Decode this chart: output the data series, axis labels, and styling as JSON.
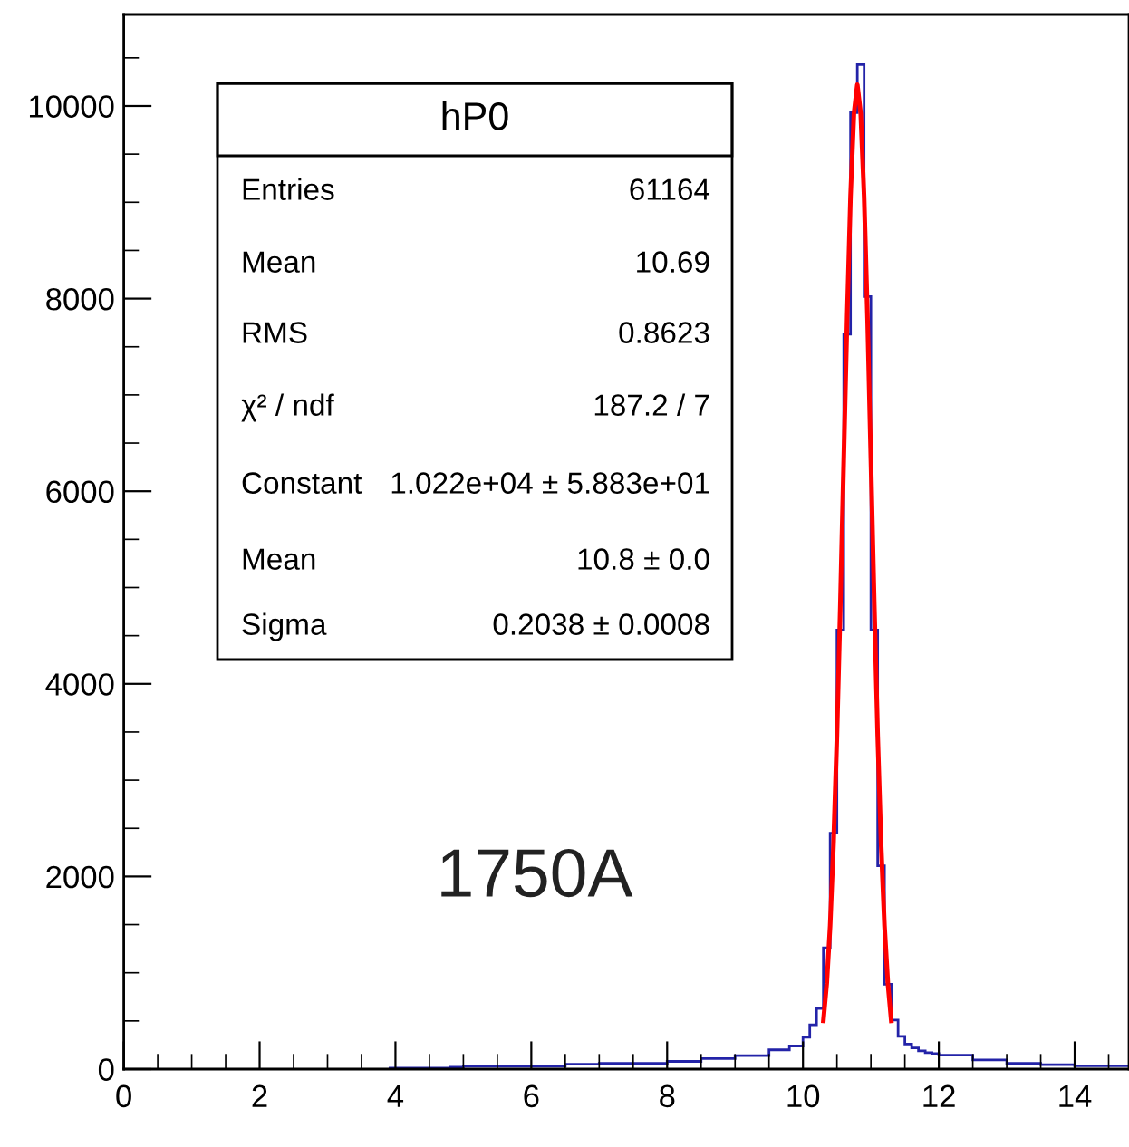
{
  "chart_data": {
    "type": "histogram",
    "xlim": [
      0,
      14.8
    ],
    "ylim": [
      0,
      10950
    ],
    "xticks": [
      0,
      2,
      4,
      6,
      8,
      10,
      12,
      14
    ],
    "yticks": [
      0,
      2000,
      4000,
      6000,
      8000,
      10000
    ],
    "series": [
      {
        "color": "#2323a8",
        "bins": [
          3.9,
          4.0,
          4.1,
          4.2,
          4.3,
          4.4,
          4.5,
          4.6,
          4.7,
          4.8,
          4.9,
          5.0,
          5.1,
          5.2,
          5.3,
          5.4,
          5.5,
          5.6,
          5.7,
          5.8,
          5.9,
          6.0,
          6.1,
          6.2,
          6.3,
          6.4,
          6.5,
          6.6,
          6.7,
          6.8,
          6.9,
          7.0,
          7.1,
          7.2,
          7.3,
          7.4,
          7.5,
          7.6,
          7.7,
          7.8,
          7.9,
          8.0,
          8.1,
          8.2,
          8.3,
          8.4,
          8.5,
          8.6,
          8.7,
          8.8,
          8.9,
          9.0,
          9.1,
          9.2,
          9.3,
          9.4,
          9.5,
          9.6,
          9.7,
          9.8,
          9.9,
          10.0,
          10.1,
          10.2,
          10.3,
          10.4,
          10.5,
          10.6,
          10.7,
          10.8,
          10.9,
          11.0,
          11.1,
          11.2,
          11.3,
          11.4,
          11.5,
          11.6,
          11.7,
          11.8,
          11.9,
          12.0,
          12.1,
          12.2,
          12.3,
          12.4,
          12.5,
          12.6,
          12.7,
          12.8,
          12.9,
          13.0,
          13.1,
          13.2,
          13.3,
          13.4,
          13.5,
          13.6,
          13.7,
          13.8,
          13.9,
          14.0,
          14.1,
          14.2,
          14.3,
          14.4,
          14.5,
          14.6,
          14.7,
          14.8
        ],
        "values": [
          10,
          10,
          10,
          10,
          10,
          10,
          10,
          10,
          10,
          20,
          20,
          30,
          30,
          30,
          30,
          30,
          30,
          30,
          30,
          30,
          30,
          30,
          30,
          30,
          30,
          30,
          50,
          50,
          50,
          50,
          50,
          60,
          60,
          60,
          60,
          60,
          60,
          60,
          60,
          60,
          60,
          80,
          80,
          80,
          80,
          80,
          110,
          110,
          110,
          110,
          110,
          140,
          140,
          140,
          140,
          140,
          200,
          200,
          200,
          240,
          240,
          330,
          460,
          630,
          1260,
          2450,
          4560,
          7630,
          9930,
          10430,
          8020,
          4560,
          2110,
          880,
          510,
          340,
          260,
          220,
          190,
          170,
          160,
          145,
          145,
          145,
          145,
          145,
          95,
          95,
          95,
          95,
          95,
          60,
          60,
          60,
          60,
          60,
          45,
          45,
          45,
          45,
          45,
          35,
          35,
          35,
          35,
          35,
          35,
          35,
          35
        ]
      },
      {
        "type": "line",
        "color": "#ff0000",
        "x": [
          10.3,
          10.35,
          10.4,
          10.45,
          10.5,
          10.55,
          10.6,
          10.65,
          10.7,
          10.75,
          10.8,
          10.85,
          10.9,
          10.95,
          11.0,
          11.05,
          11.1,
          11.15,
          11.2,
          11.25,
          11.3
        ],
        "values": [
          500,
          890,
          1490,
          2340,
          3460,
          4820,
          6320,
          7800,
          9060,
          9920,
          10220,
          9920,
          9060,
          7800,
          6320,
          4820,
          3460,
          2340,
          1490,
          890,
          500
        ]
      }
    ],
    "annotations": [
      "hP0",
      "Entries",
      "61164",
      "Mean",
      "10.69",
      "RMS",
      "0.8623",
      "χ² / ndf",
      "187.2 / 7",
      "Constant",
      "1.022e+04 ± 5.883e+01",
      "Mean",
      "10.8 ± 0.0",
      "Sigma",
      "0.2038 ± 0.0008",
      "1750A"
    ],
    "grid": false
  }
}
